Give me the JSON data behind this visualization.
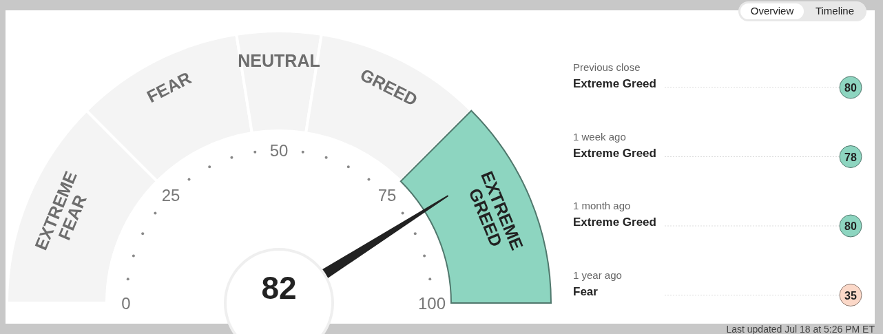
{
  "chart_data": [
    {
      "type": "donut",
      "categories": [
        "EXTREME FEAR",
        "FEAR",
        "NEUTRAL",
        "GREED",
        "EXTREME GREED"
      ],
      "values": [
        25,
        20,
        10,
        20,
        25
      ],
      "colors": [
        "#f4f4f4",
        "#f4f4f4",
        "#f4f4f4",
        "#f4f4f4",
        "#8dd5c0"
      ],
      "needle": "EXTREME GREED",
      "annotations": [
        "82",
        "0",
        "25",
        "50",
        "75",
        "100"
      ]
    },
    {
      "type": "other",
      "colors": [
        "#8dd5c0",
        "#8dd5c0",
        "#8dd5c0",
        "#fbd8c8"
      ],
      "annotations": [
        "Overview",
        "Timeline",
        "Previous close",
        "Extreme Greed",
        "80",
        "1 week ago",
        "Extreme Greed",
        "78",
        "1 month ago",
        "Extreme Greed",
        "80",
        "1 year ago",
        "Fear",
        "35",
        "Last updated Jul 18 at 5:26 PM ET"
      ]
    }
  ]
}
